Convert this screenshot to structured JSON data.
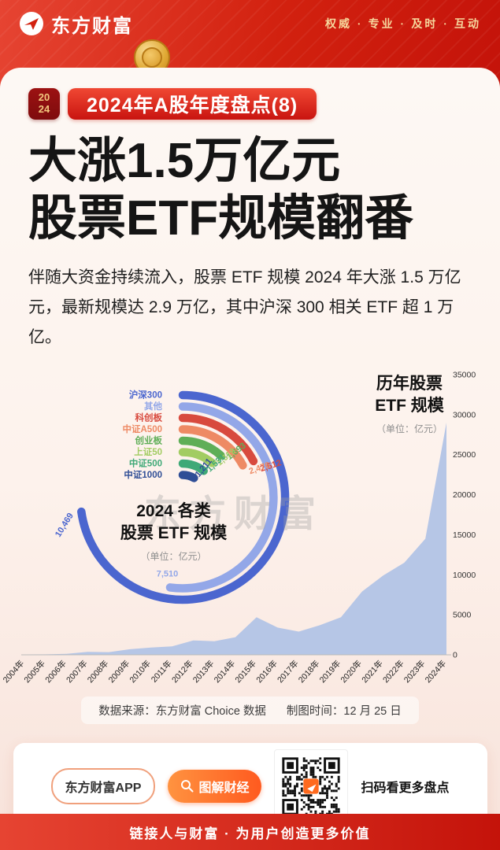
{
  "header": {
    "brand": "东方财富",
    "slogan": "权威 · 专业 · 及时 · 互动"
  },
  "badge": {
    "year_line1": "20",
    "year_line2": "24",
    "title": "2024年A股年度盘点(8)"
  },
  "headline": {
    "line1": "大涨1.5万亿元",
    "line2": "股票ETF规模翻番"
  },
  "intro": "伴随大资金持续流入，股票 ETF 规模 2024 年大涨 1.5 万亿元，最新规模达 2.9 万亿，其中沪深 300 相关 ETF 超 1 万亿。",
  "watermark": "东方财富",
  "chart_data": [
    {
      "type": "radial-bar",
      "title_lines": [
        "2024 各类",
        "股票 ETF 规模"
      ],
      "unit": "（单位：亿元）",
      "categories": [
        "沪深300",
        "其他",
        "科创板",
        "中证A500",
        "创业板",
        "上证50",
        "中证500",
        "中证1000"
      ],
      "values": [
        10469,
        7510,
        2512,
        2476,
        1693,
        1619,
        1531,
        1211
      ],
      "value_labels": [
        "10,469",
        "7,510",
        "2,512",
        "2,476",
        "1,693",
        "1,619",
        "1,531",
        "1,211"
      ],
      "colors": [
        "#4b66cf",
        "#93a7e8",
        "#d84a3e",
        "#ee8a64",
        "#5fae57",
        "#a2cc62",
        "#3fa977",
        "#2f4e96"
      ],
      "max_angle_deg": 262
    },
    {
      "type": "area",
      "title_lines": [
        "历年股票",
        "ETF 规模"
      ],
      "unit": "（单位：亿元）",
      "x": [
        "2004年",
        "2005年",
        "2006年",
        "2007年",
        "2008年",
        "2009年",
        "2010年",
        "2011年",
        "2012年",
        "2013年",
        "2014年",
        "2015年",
        "2016年",
        "2017年",
        "2018年",
        "2019年",
        "2020年",
        "2021年",
        "2022年",
        "2023年",
        "2024年"
      ],
      "values": [
        54,
        62,
        120,
        360,
        330,
        700,
        900,
        1050,
        1800,
        1700,
        2200,
        4700,
        3400,
        2900,
        3700,
        4700,
        7900,
        9900,
        11500,
        14500,
        29000
      ],
      "ylim": [
        0,
        35000
      ],
      "yticks": [
        0,
        5000,
        10000,
        15000,
        20000,
        25000,
        30000,
        35000
      ],
      "fill": "#b6c6e6",
      "legend": false,
      "grid": false
    }
  ],
  "source": {
    "data_source": "数据来源：东方财富 Choice 数据",
    "chart_time": "制图时间：12 月 25 日"
  },
  "cta": {
    "app_label": "东方财富APP",
    "cta_label": "图解财经",
    "qr_caption": "扫码看更多盘点"
  },
  "bottom_bar": "链接人与财富 · 为用户创造更多价值"
}
